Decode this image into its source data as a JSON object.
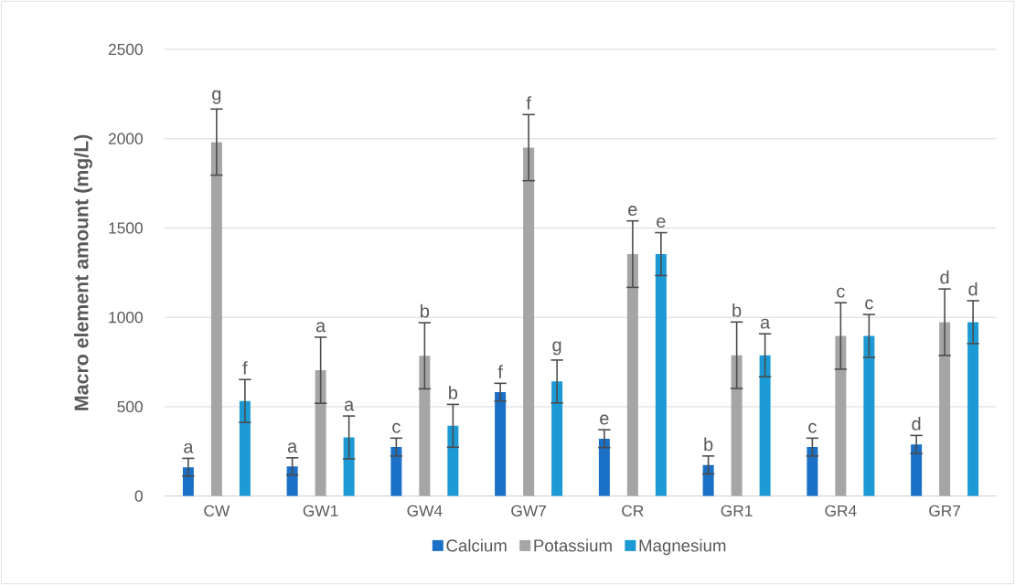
{
  "chart_data": {
    "type": "bar",
    "ylabel": "Macro element amount (mg/L)",
    "categories": [
      "CW",
      "GW1",
      "GW4",
      "GW7",
      "CR",
      "GR1",
      "GR4",
      "GR7"
    ],
    "series": [
      {
        "name": "Calcium",
        "color": "#1a6fc6",
        "values": [
          161,
          166,
          274,
          581,
          321,
          174,
          274,
          289
        ],
        "errors": [
          50,
          48,
          50,
          50,
          50,
          50,
          50,
          50
        ],
        "value_labels": [
          "a",
          "a",
          "c",
          "f",
          "e",
          "b",
          "c",
          "d"
        ]
      },
      {
        "name": "Potassium",
        "color": "#a5a5a5",
        "values": [
          1981,
          704,
          785,
          1950,
          1354,
          788,
          896,
          973
        ],
        "errors": [
          185,
          185,
          185,
          185,
          186,
          186,
          186,
          186
        ],
        "value_labels": [
          "g",
          "a",
          "b",
          "f",
          "e",
          "b",
          "c",
          "d"
        ]
      },
      {
        "name": "Magnesium",
        "color": "#1b9ad6",
        "values": [
          532,
          328,
          393,
          641,
          1354,
          788,
          896,
          973
        ],
        "errors": [
          120,
          120,
          120,
          120,
          120,
          120,
          120,
          120
        ],
        "value_labels": [
          "f",
          "a",
          "b",
          "g",
          "e",
          "a",
          "c",
          "d"
        ]
      }
    ],
    "ylim": [
      0,
      2500
    ],
    "yticks": [
      0,
      500,
      1000,
      1500,
      2000,
      2500
    ],
    "grid": "y",
    "legend": "bottom"
  }
}
